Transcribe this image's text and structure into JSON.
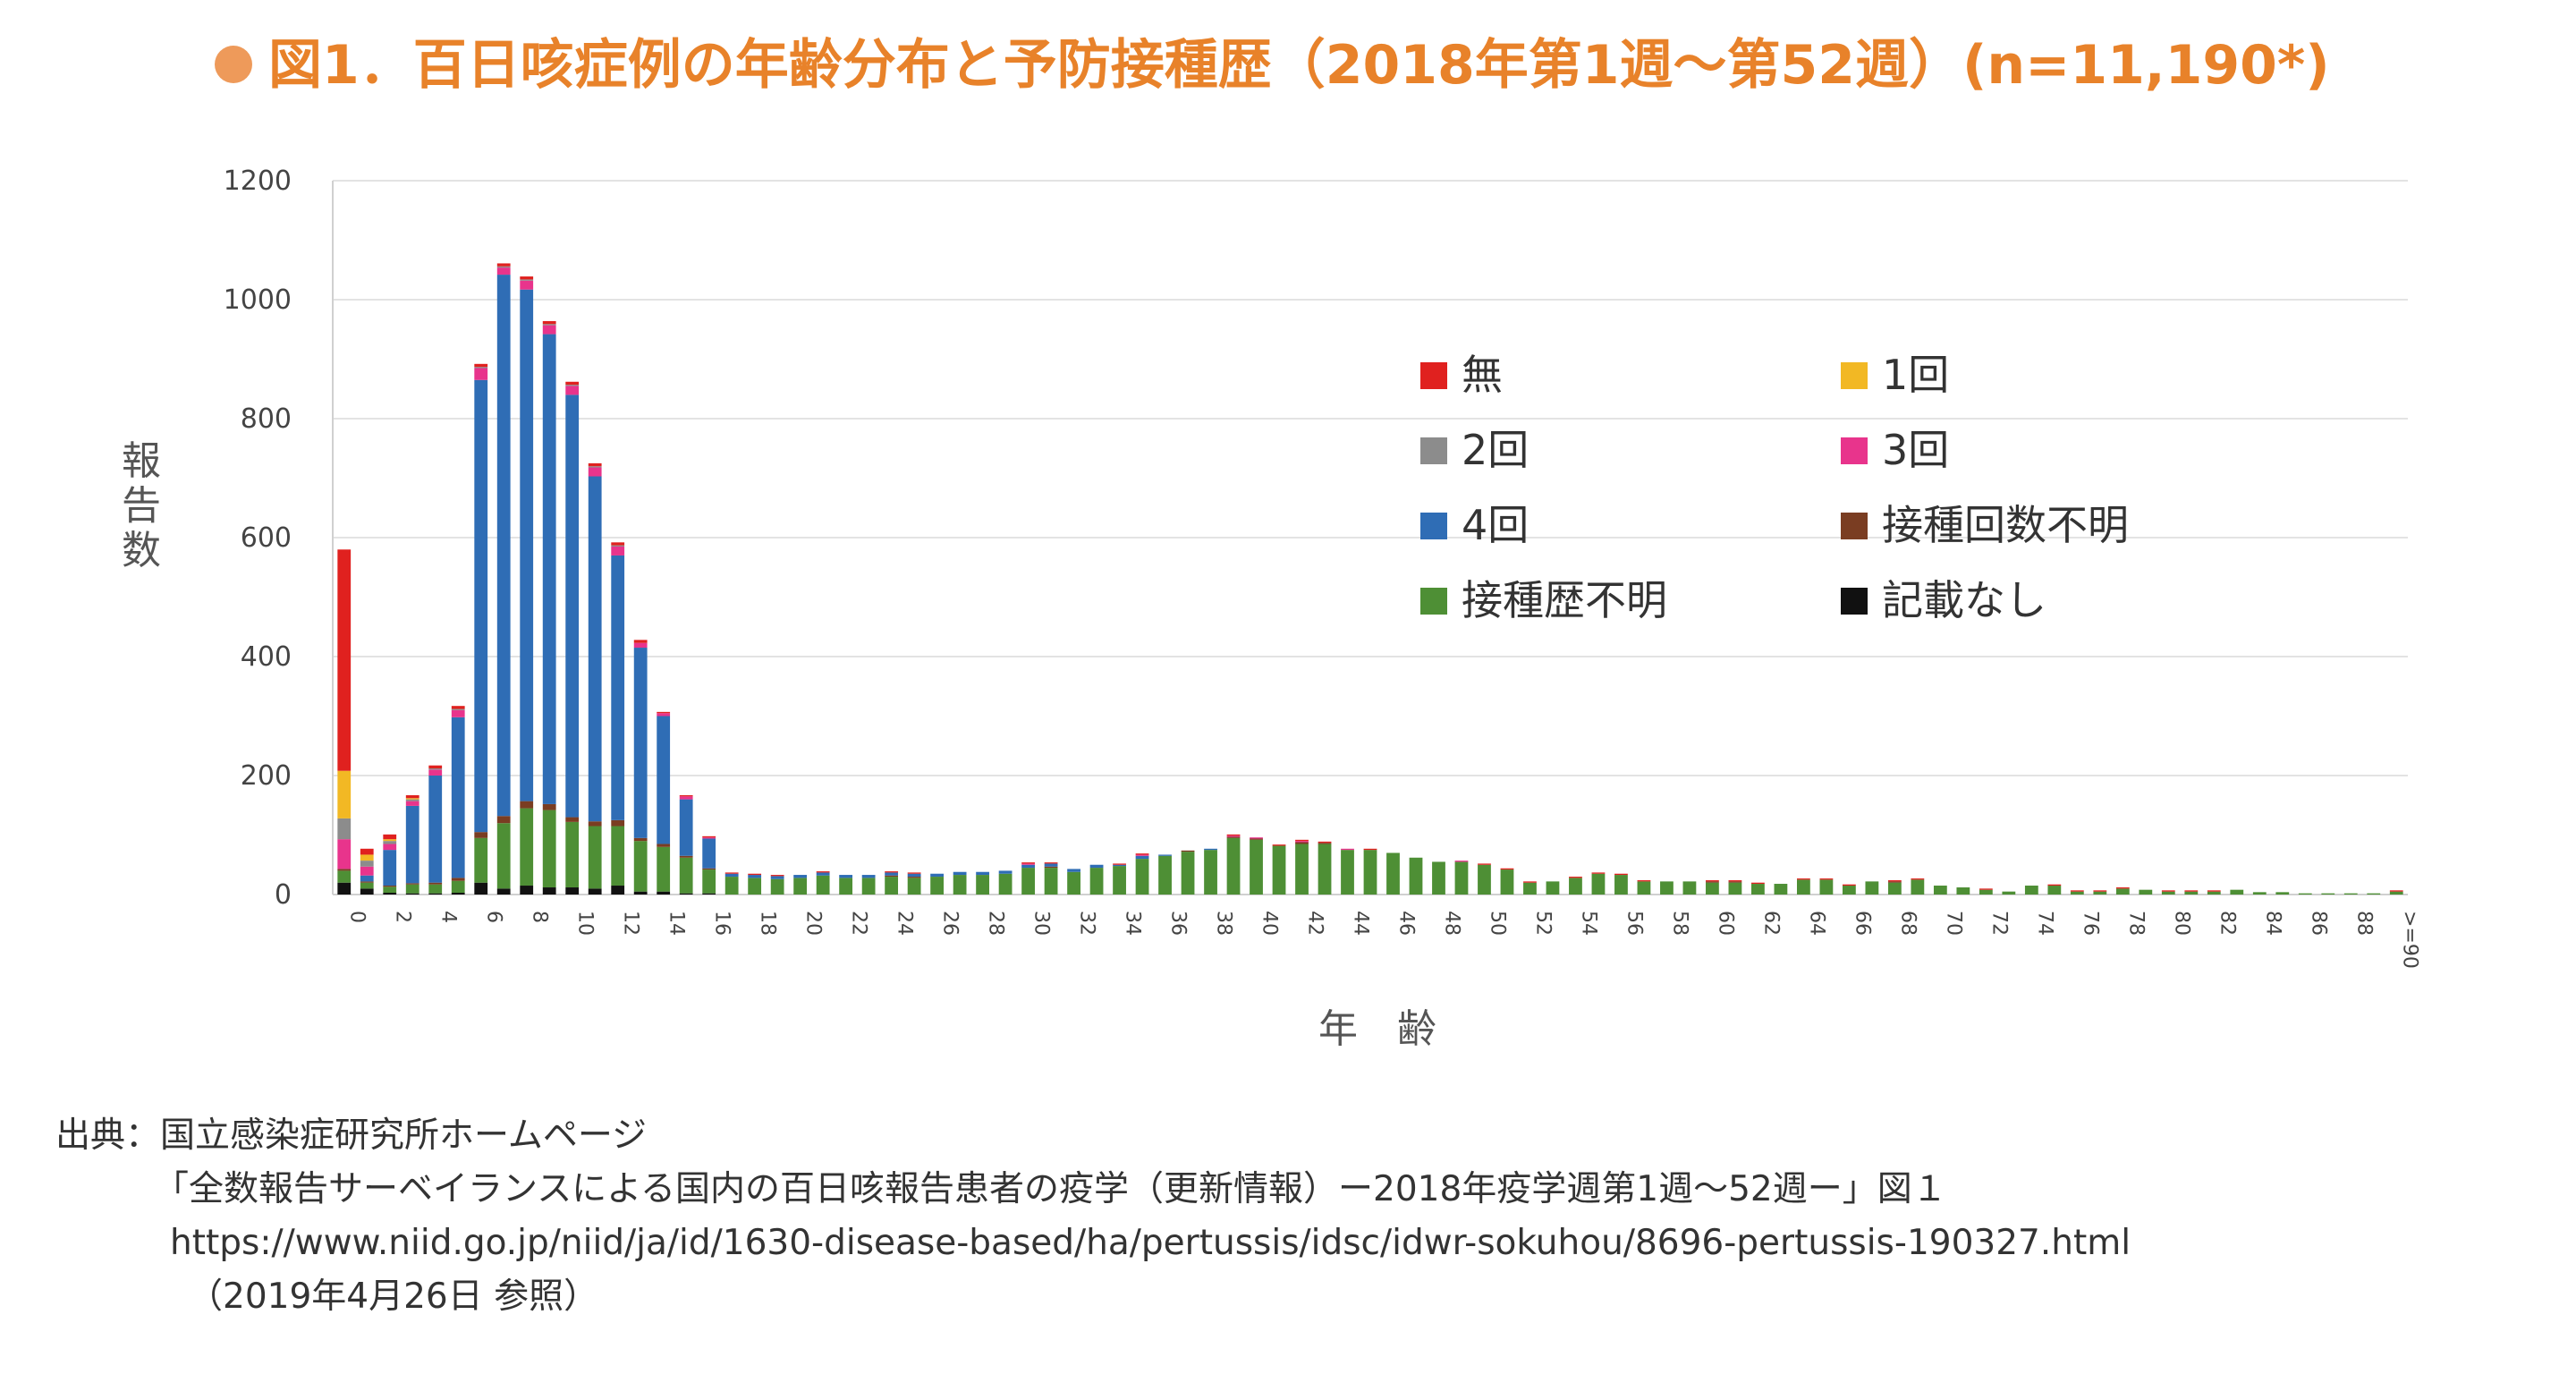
{
  "title": {
    "bullet": "●",
    "text": "図1．百日咳症例の年齢分布と予防接種歴（2018年第1週〜第52週）(n=11,190*)"
  },
  "source": {
    "line1": "出典：国立感染症研究所ホームページ",
    "line2": "「全数報告サーベイランスによる国内の百日咳報告患者の疫学（更新情報）ー2018年疫学週第1週〜52週ー」図１",
    "line3": "https://www.niid.go.jp/niid/ja/id/1630-disease-based/ha/pertussis/idsc/idwr-sokuhou/8696-pertussis-190327.html",
    "line4": "（2019年4月26日 参照）"
  },
  "chart_data": {
    "type": "bar",
    "stacked": true,
    "xlabel": "年　齢",
    "ylabel": "報告数",
    "ylim": [
      0,
      1200
    ],
    "yticks": [
      0,
      200,
      400,
      600,
      800,
      1000,
      1200
    ],
    "grid": true,
    "legend_position": "upper-right inside plot, 2 columns",
    "categories": [
      "0",
      "1",
      "2",
      "3",
      "4",
      "5",
      "6",
      "7",
      "8",
      "9",
      "10",
      "11",
      "12",
      "13",
      "14",
      "15",
      "16",
      "17",
      "18",
      "19",
      "20",
      "21",
      "22",
      "23",
      "24",
      "25",
      "26",
      "27",
      "28",
      "29",
      "30",
      "31",
      "32",
      "33",
      "34",
      "35",
      "36",
      "37",
      "38",
      "39",
      "40",
      "41",
      "42",
      "43",
      "44",
      "45",
      "46",
      "47",
      "48",
      "49",
      "50",
      "51",
      "52",
      "53",
      "54",
      "55",
      "56",
      "57",
      "58",
      "59",
      "60",
      "61",
      "62",
      "63",
      "64",
      "65",
      "66",
      "67",
      "68",
      "69",
      "70",
      "71",
      "72",
      "73",
      "74",
      "75",
      "76",
      "77",
      "78",
      "79",
      "80",
      "81",
      "82",
      "83",
      "84",
      "85",
      "86",
      "87",
      "88",
      "89",
      ">=90"
    ],
    "tick_labels": [
      "0",
      "",
      "2",
      "",
      "4",
      "",
      "6",
      "",
      "8",
      "",
      "10",
      "",
      "12",
      "",
      "14",
      "",
      "16",
      "",
      "18",
      "",
      "20",
      "",
      "22",
      "",
      "24",
      "",
      "26",
      "",
      "28",
      "",
      "30",
      "",
      "32",
      "",
      "34",
      "",
      "36",
      "",
      "38",
      "",
      "40",
      "",
      "42",
      "",
      "44",
      "",
      "46",
      "",
      "48",
      "",
      "50",
      "",
      "52",
      "",
      "54",
      "",
      "56",
      "",
      "58",
      "",
      "60",
      "",
      "62",
      "",
      "64",
      "",
      "66",
      "",
      "68",
      "",
      "70",
      "",
      "72",
      "",
      "74",
      "",
      "76",
      "",
      "78",
      "",
      "80",
      "",
      "82",
      "",
      "84",
      "",
      "86",
      "",
      "88",
      "",
      ">=90"
    ],
    "series": [
      {
        "name": "記載なし",
        "color": "#111111",
        "values": [
          20,
          10,
          3,
          2,
          2,
          3,
          20,
          10,
          15,
          12,
          12,
          10,
          15,
          5,
          5,
          2,
          2,
          0,
          0,
          0,
          0,
          0,
          0,
          0,
          0,
          0,
          0,
          0,
          0,
          0,
          0,
          0,
          0,
          0,
          0,
          0,
          0,
          0,
          0,
          0,
          0,
          0,
          0,
          0,
          0,
          0,
          0,
          0,
          0,
          0,
          0,
          0,
          0,
          0,
          0,
          0,
          0,
          0,
          0,
          0,
          0,
          0,
          0,
          0,
          0,
          0,
          0,
          0,
          0,
          0,
          0,
          0,
          0,
          0,
          0,
          0,
          0,
          0,
          0,
          0,
          0,
          0,
          0,
          0,
          0,
          0,
          0,
          0,
          0,
          0,
          0
        ]
      },
      {
        "name": "接種歴不明",
        "color": "#4e8f35",
        "values": [
          20,
          10,
          10,
          15,
          15,
          20,
          75,
          110,
          130,
          130,
          110,
          105,
          100,
          85,
          75,
          60,
          40,
          30,
          28,
          26,
          28,
          32,
          28,
          28,
          30,
          28,
          30,
          33,
          33,
          35,
          45,
          45,
          38,
          45,
          48,
          60,
          65,
          72,
          75,
          95,
          92,
          82,
          85,
          85,
          75,
          75,
          70,
          62,
          55,
          55,
          50,
          42,
          20,
          22,
          28,
          35,
          33,
          22,
          22,
          22,
          20,
          20,
          18,
          18,
          25,
          25,
          15,
          22,
          20,
          25,
          15,
          12,
          8,
          5,
          15,
          15,
          5,
          5,
          10,
          8,
          5,
          5,
          5,
          8,
          4,
          4,
          2,
          2,
          2,
          2,
          5
        ]
      },
      {
        "name": "接種回数不明",
        "color": "#7a3d22",
        "values": [
          3,
          2,
          2,
          2,
          3,
          5,
          10,
          12,
          12,
          10,
          8,
          8,
          10,
          5,
          5,
          3,
          2,
          0,
          0,
          0,
          0,
          0,
          0,
          0,
          2,
          2,
          0,
          0,
          0,
          0,
          0,
          2,
          0,
          0,
          0,
          0,
          0,
          2,
          0,
          2,
          2,
          0,
          3,
          2,
          0,
          0,
          0,
          0,
          0,
          0,
          0,
          0,
          0,
          0,
          0,
          0,
          0,
          0,
          0,
          0,
          2,
          2,
          0,
          0,
          0,
          0,
          0,
          0,
          2,
          0,
          0,
          0,
          0,
          0,
          0,
          0,
          0,
          0,
          0,
          0,
          0,
          0,
          0,
          0,
          0,
          0,
          0,
          0,
          0,
          0,
          0
        ]
      },
      {
        "name": "4回",
        "color": "#2f6db5",
        "values": [
          0,
          10,
          60,
          130,
          180,
          270,
          760,
          910,
          860,
          790,
          710,
          580,
          445,
          320,
          215,
          95,
          50,
          5,
          5,
          5,
          5,
          5,
          5,
          5,
          5,
          5,
          5,
          5,
          5,
          5,
          5,
          5,
          5,
          5,
          2,
          5,
          2,
          0,
          2,
          0,
          0,
          0,
          0,
          0,
          0,
          0,
          0,
          0,
          0,
          0,
          0,
          0,
          0,
          0,
          0,
          0,
          0,
          0,
          0,
          0,
          0,
          0,
          0,
          0,
          0,
          0,
          0,
          0,
          0,
          0,
          0,
          0,
          0,
          0,
          0,
          0,
          0,
          0,
          0,
          0,
          0,
          0,
          0,
          0,
          0,
          0,
          0,
          0,
          0,
          0,
          0
        ]
      },
      {
        "name": "3回",
        "color": "#e8348c",
        "values": [
          50,
          15,
          10,
          8,
          10,
          12,
          20,
          12,
          15,
          15,
          15,
          15,
          15,
          8,
          5,
          5,
          2,
          0,
          0,
          0,
          0,
          0,
          0,
          0,
          0,
          0,
          0,
          0,
          0,
          0,
          2,
          0,
          0,
          0,
          0,
          2,
          0,
          0,
          0,
          2,
          2,
          0,
          2,
          0,
          2,
          0,
          0,
          0,
          0,
          2,
          0,
          0,
          0,
          0,
          0,
          0,
          0,
          0,
          0,
          0,
          0,
          0,
          0,
          0,
          0,
          0,
          0,
          0,
          0,
          0,
          0,
          0,
          0,
          0,
          0,
          0,
          0,
          0,
          0,
          0,
          0,
          0,
          0,
          0,
          0,
          0,
          0,
          0,
          0,
          0,
          0
        ]
      },
      {
        "name": "2回",
        "color": "#8c8c8c",
        "values": [
          35,
          10,
          5,
          3,
          2,
          2,
          2,
          2,
          2,
          2,
          2,
          2,
          2,
          0,
          0,
          0,
          0,
          0,
          0,
          0,
          0,
          0,
          0,
          0,
          0,
          0,
          0,
          0,
          0,
          0,
          0,
          0,
          0,
          0,
          0,
          0,
          0,
          0,
          0,
          0,
          0,
          0,
          0,
          0,
          0,
          0,
          0,
          0,
          0,
          0,
          0,
          0,
          0,
          0,
          0,
          0,
          0,
          0,
          0,
          0,
          0,
          0,
          0,
          0,
          0,
          0,
          0,
          0,
          0,
          0,
          0,
          0,
          0,
          0,
          0,
          0,
          0,
          0,
          0,
          0,
          0,
          0,
          0,
          0,
          0,
          0,
          0,
          0,
          0,
          0,
          0
        ]
      },
      {
        "name": "1回",
        "color": "#f2b824",
        "values": [
          80,
          10,
          3,
          2,
          0,
          0,
          0,
          0,
          0,
          0,
          0,
          0,
          0,
          0,
          0,
          0,
          0,
          0,
          0,
          0,
          0,
          0,
          0,
          0,
          0,
          0,
          0,
          0,
          0,
          0,
          0,
          0,
          0,
          0,
          0,
          0,
          0,
          0,
          0,
          0,
          0,
          0,
          0,
          0,
          0,
          0,
          0,
          0,
          0,
          0,
          0,
          0,
          0,
          0,
          0,
          0,
          0,
          0,
          0,
          0,
          0,
          0,
          0,
          0,
          0,
          0,
          0,
          0,
          0,
          0,
          0,
          0,
          0,
          0,
          0,
          0,
          0,
          0,
          0,
          0,
          0,
          0,
          0,
          0,
          0,
          0,
          0,
          0,
          0,
          0,
          0
        ]
      },
      {
        "name": "無",
        "color": "#e0211f",
        "values": [
          372,
          10,
          8,
          5,
          5,
          5,
          5,
          5,
          5,
          5,
          5,
          5,
          5,
          5,
          2,
          2,
          2,
          2,
          2,
          2,
          0,
          2,
          0,
          0,
          2,
          2,
          0,
          0,
          0,
          0,
          2,
          2,
          0,
          0,
          2,
          2,
          0,
          0,
          0,
          2,
          0,
          2,
          2,
          2,
          0,
          2,
          0,
          0,
          0,
          0,
          2,
          2,
          2,
          0,
          2,
          2,
          2,
          2,
          0,
          0,
          2,
          2,
          2,
          0,
          2,
          2,
          2,
          0,
          2,
          2,
          0,
          0,
          2,
          0,
          0,
          2,
          2,
          2,
          2,
          0,
          2,
          2,
          2,
          0,
          0,
          0,
          0,
          0,
          0,
          0,
          2
        ]
      }
    ],
    "legend": [
      {
        "name": "無",
        "color": "#e0211f"
      },
      {
        "name": "1回",
        "color": "#f2b824"
      },
      {
        "name": "2回",
        "color": "#8c8c8c"
      },
      {
        "name": "3回",
        "color": "#e8348c"
      },
      {
        "name": "4回",
        "color": "#2f6db5"
      },
      {
        "name": "接種回数不明",
        "color": "#7a3d22"
      },
      {
        "name": "接種歴不明",
        "color": "#4e8f35"
      },
      {
        "name": "記載なし",
        "color": "#111111"
      }
    ]
  }
}
